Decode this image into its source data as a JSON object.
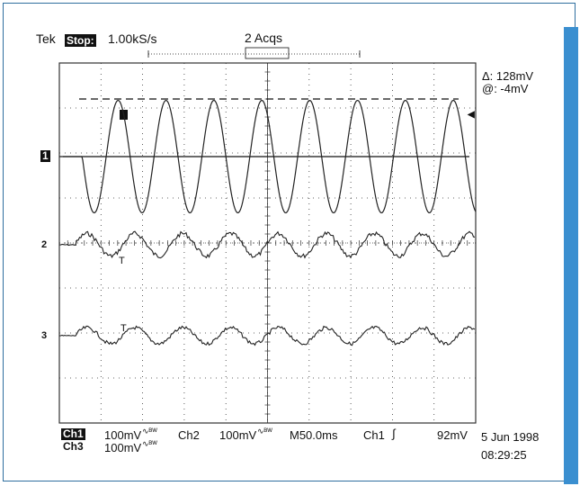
{
  "header": {
    "brand": "Tek",
    "state": "Stop:",
    "sample_rate": "1.00kS/s",
    "acquisitions": "2 Acqs"
  },
  "measurement": {
    "delta": "Δ: 128mV",
    "at": "@: -4mV"
  },
  "channel_markers": {
    "ch1": "1",
    "ch2": "2",
    "ch3": "3",
    "trigger_level_cursor": "◀"
  },
  "footer": {
    "ch1_label": "Ch1",
    "ch1_scale": "100mV",
    "ch2_label": "Ch2",
    "ch2_scale": "100mV",
    "ch3_label": "Ch3",
    "ch3_scale": "100mV",
    "timebase": "M50.0ms",
    "trigger_source": "Ch1",
    "trigger_slope": "∫",
    "trigger_level": "92mV",
    "date": "5 Jun 1998",
    "time": "08:29:25"
  },
  "chart_data": {
    "type": "line",
    "grid": true,
    "divisions": {
      "x": 10,
      "y": 8
    },
    "series": [
      {
        "name": "Ch1",
        "trace": "sine",
        "amplitude_div": 1.25,
        "period_div": 1.15,
        "start_div": 0.55
      },
      {
        "name": "Ch2",
        "trace": "noisy-sine",
        "amplitude_div": 0.25,
        "period_div": 1.15
      },
      {
        "name": "Ch3",
        "trace": "noisy-sine",
        "amplitude_div": 0.18,
        "period_div": 1.15
      }
    ],
    "colors": {
      "trace": "#222222",
      "grid": "#333333",
      "accent": "#3a8fd0"
    }
  }
}
